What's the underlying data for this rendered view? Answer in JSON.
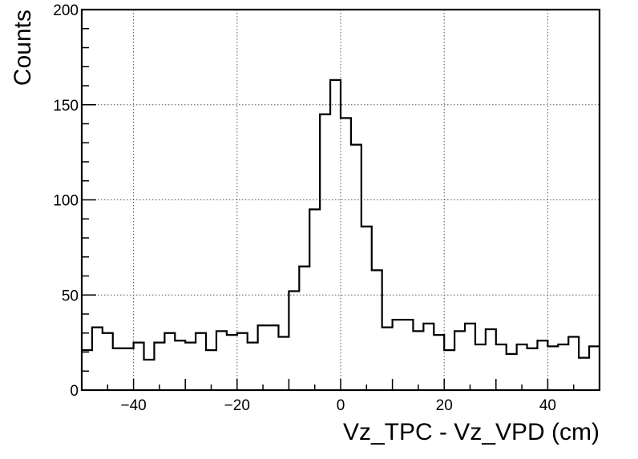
{
  "chart_data": {
    "type": "histogram",
    "title": "",
    "xlabel": "Vz_TPC - Vz_VPD (cm)",
    "ylabel": "Counts",
    "xlim": [
      -50,
      50
    ],
    "ylim": [
      0,
      200
    ],
    "grid": true,
    "x_ticks": [
      -40,
      -20,
      0,
      20,
      40
    ],
    "x_tick_labels": [
      "−40",
      "−20",
      "0",
      "20",
      "40"
    ],
    "y_ticks": [
      0,
      50,
      100,
      150,
      200
    ],
    "y_tick_labels": [
      "0",
      "50",
      "100",
      "150",
      "200"
    ],
    "bin_edges_start": -50,
    "bin_width": 2,
    "counts": [
      21,
      33,
      30,
      22,
      22,
      25,
      16,
      25,
      30,
      26,
      25,
      30,
      21,
      31,
      29,
      30,
      25,
      34,
      34,
      28,
      52,
      65,
      95,
      145,
      163,
      143,
      129,
      86,
      63,
      33,
      37,
      37,
      31,
      35,
      29,
      21,
      31,
      35,
      24,
      32,
      24,
      19,
      24,
      22,
      26,
      23,
      24,
      28,
      17,
      23
    ],
    "line_color": "#000000"
  }
}
